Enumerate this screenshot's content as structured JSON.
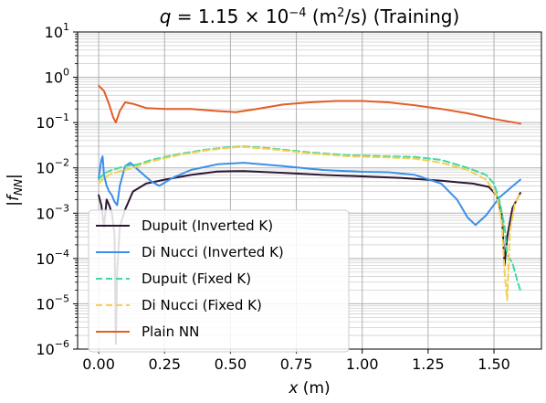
{
  "chart_data": {
    "type": "line",
    "title": "q = 1.15 × 10⁻⁴ (m²/s) (Training)",
    "xlabel": "x (m)",
    "ylabel": "|f_NN|",
    "xlim": [
      -0.08,
      1.68
    ],
    "ylim": [
      1e-06,
      10
    ],
    "yscale": "log",
    "grid": true,
    "legend_position": "lower-left",
    "x_ticks": [
      0.0,
      0.25,
      0.5,
      0.75,
      1.0,
      1.25,
      1.5
    ],
    "x_tick_labels": [
      "0.00",
      "0.25",
      "0.50",
      "0.75",
      "1.00",
      "1.25",
      "1.50"
    ],
    "y_ticks": [
      1e-06,
      1e-05,
      0.0001,
      0.001,
      0.01,
      0.1,
      1,
      10
    ],
    "y_tick_exponents": [
      "−6",
      "−5",
      "−4",
      "−3",
      "−2",
      "−1",
      "0",
      "1"
    ],
    "series": [
      {
        "name": "Dupuit (Inverted K)",
        "color": "#2b1634",
        "dash": "solid",
        "points": [
          [
            0.0,
            0.0025
          ],
          [
            0.01,
            0.0015
          ],
          [
            0.02,
            0.0005
          ],
          [
            0.03,
            0.002
          ],
          [
            0.04,
            0.0015
          ],
          [
            0.05,
            0.001
          ],
          [
            0.06,
            0.00035
          ],
          [
            0.065,
            1.3e-06
          ],
          [
            0.07,
            5e-05
          ],
          [
            0.08,
            0.0005
          ],
          [
            0.1,
            0.0012
          ],
          [
            0.13,
            0.003
          ],
          [
            0.18,
            0.0045
          ],
          [
            0.25,
            0.0055
          ],
          [
            0.35,
            0.007
          ],
          [
            0.45,
            0.0083
          ],
          [
            0.55,
            0.0085
          ],
          [
            0.7,
            0.0078
          ],
          [
            0.85,
            0.007
          ],
          [
            1.0,
            0.0065
          ],
          [
            1.15,
            0.006
          ],
          [
            1.3,
            0.0052
          ],
          [
            1.42,
            0.0045
          ],
          [
            1.48,
            0.0038
          ],
          [
            1.51,
            0.0025
          ],
          [
            1.53,
            0.0009
          ],
          [
            1.54,
            7e-05
          ],
          [
            1.55,
            0.0003
          ],
          [
            1.57,
            0.0013
          ],
          [
            1.6,
            0.0028
          ]
        ]
      },
      {
        "name": "Di Nucci (Inverted K)",
        "color": "#3b8fe8",
        "dash": "solid",
        "points": [
          [
            0.0,
            0.006
          ],
          [
            0.01,
            0.015
          ],
          [
            0.015,
            0.018
          ],
          [
            0.02,
            0.007
          ],
          [
            0.03,
            0.004
          ],
          [
            0.04,
            0.003
          ],
          [
            0.05,
            0.0025
          ],
          [
            0.06,
            0.0018
          ],
          [
            0.07,
            0.0015
          ],
          [
            0.08,
            0.004
          ],
          [
            0.1,
            0.011
          ],
          [
            0.12,
            0.013
          ],
          [
            0.15,
            0.009
          ],
          [
            0.2,
            0.005
          ],
          [
            0.23,
            0.004
          ],
          [
            0.28,
            0.006
          ],
          [
            0.35,
            0.009
          ],
          [
            0.45,
            0.012
          ],
          [
            0.55,
            0.013
          ],
          [
            0.7,
            0.011
          ],
          [
            0.85,
            0.009
          ],
          [
            1.0,
            0.0082
          ],
          [
            1.1,
            0.008
          ],
          [
            1.2,
            0.007
          ],
          [
            1.3,
            0.0045
          ],
          [
            1.36,
            0.002
          ],
          [
            1.4,
            0.0008
          ],
          [
            1.43,
            0.00055
          ],
          [
            1.47,
            0.0009
          ],
          [
            1.52,
            0.0022
          ],
          [
            1.56,
            0.0035
          ],
          [
            1.6,
            0.0055
          ]
        ]
      },
      {
        "name": "Dupuit (Fixed K)",
        "color": "#3ddba0",
        "dash": "dashed",
        "points": [
          [
            0.0,
            0.0055
          ],
          [
            0.02,
            0.0075
          ],
          [
            0.05,
            0.009
          ],
          [
            0.1,
            0.011
          ],
          [
            0.15,
            0.012
          ],
          [
            0.2,
            0.015
          ],
          [
            0.3,
            0.02
          ],
          [
            0.4,
            0.025
          ],
          [
            0.5,
            0.029
          ],
          [
            0.55,
            0.03
          ],
          [
            0.65,
            0.027
          ],
          [
            0.8,
            0.022
          ],
          [
            0.95,
            0.019
          ],
          [
            1.1,
            0.018
          ],
          [
            1.2,
            0.0175
          ],
          [
            1.3,
            0.015
          ],
          [
            1.4,
            0.01
          ],
          [
            1.47,
            0.007
          ],
          [
            1.5,
            0.0045
          ],
          [
            1.52,
            0.002
          ],
          [
            1.54,
            0.0005
          ],
          [
            1.55,
            0.00012
          ],
          [
            1.57,
            8e-05
          ],
          [
            1.59,
            3e-05
          ],
          [
            1.6,
            2e-05
          ]
        ]
      },
      {
        "name": "Di Nucci (Fixed K)",
        "color": "#f5cf52",
        "dash": "dashed",
        "points": [
          [
            0.0,
            0.0045
          ],
          [
            0.02,
            0.006
          ],
          [
            0.05,
            0.0075
          ],
          [
            0.1,
            0.009
          ],
          [
            0.15,
            0.011
          ],
          [
            0.2,
            0.014
          ],
          [
            0.3,
            0.019
          ],
          [
            0.4,
            0.024
          ],
          [
            0.5,
            0.028
          ],
          [
            0.55,
            0.029
          ],
          [
            0.65,
            0.026
          ],
          [
            0.8,
            0.021
          ],
          [
            0.95,
            0.018
          ],
          [
            1.1,
            0.017
          ],
          [
            1.2,
            0.016
          ],
          [
            1.3,
            0.013
          ],
          [
            1.4,
            0.009
          ],
          [
            1.47,
            0.0055
          ],
          [
            1.51,
            0.0025
          ],
          [
            1.53,
            0.0006
          ],
          [
            1.54,
            5e-05
          ],
          [
            1.55,
            1.2e-05
          ],
          [
            1.56,
            0.0004
          ],
          [
            1.58,
            0.0017
          ],
          [
            1.6,
            0.0028
          ]
        ]
      },
      {
        "name": "Plain NN",
        "color": "#e35d26",
        "dash": "solid",
        "points": [
          [
            0.0,
            0.65
          ],
          [
            0.02,
            0.5
          ],
          [
            0.04,
            0.25
          ],
          [
            0.055,
            0.13
          ],
          [
            0.065,
            0.1
          ],
          [
            0.08,
            0.18
          ],
          [
            0.1,
            0.28
          ],
          [
            0.13,
            0.26
          ],
          [
            0.18,
            0.21
          ],
          [
            0.25,
            0.2
          ],
          [
            0.35,
            0.2
          ],
          [
            0.45,
            0.18
          ],
          [
            0.52,
            0.17
          ],
          [
            0.6,
            0.2
          ],
          [
            0.7,
            0.25
          ],
          [
            0.8,
            0.28
          ],
          [
            0.9,
            0.3
          ],
          [
            1.0,
            0.3
          ],
          [
            1.1,
            0.28
          ],
          [
            1.2,
            0.24
          ],
          [
            1.3,
            0.2
          ],
          [
            1.4,
            0.16
          ],
          [
            1.5,
            0.12
          ],
          [
            1.6,
            0.095
          ]
        ]
      }
    ]
  }
}
